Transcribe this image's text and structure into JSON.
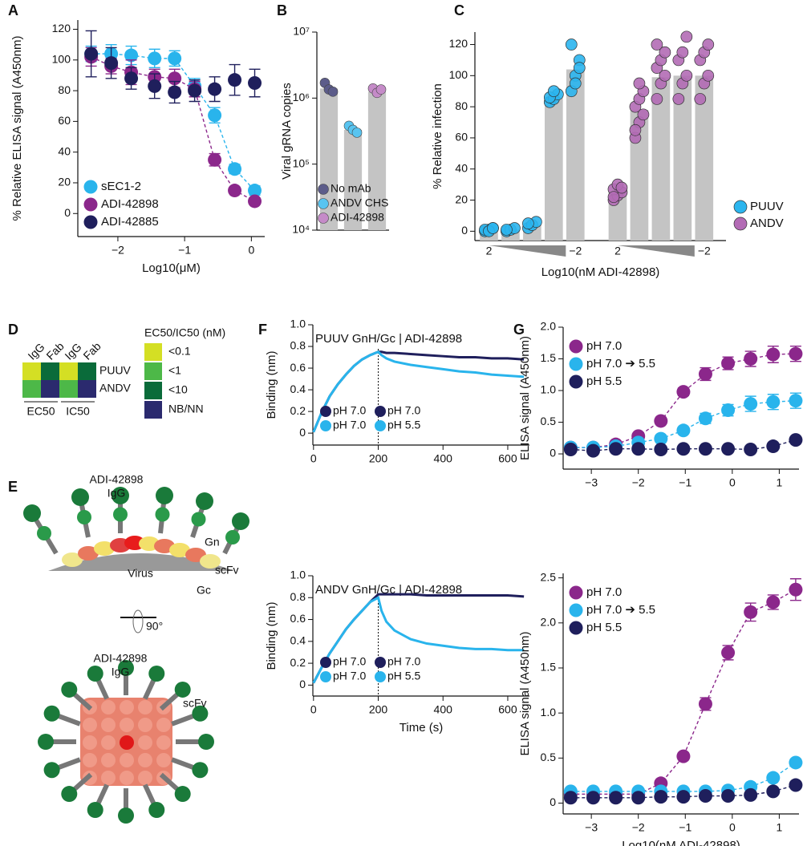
{
  "chart_data": [
    {
      "type": "scatter",
      "panel": "A",
      "xlabel": "Log10(μM)",
      "ylabel": "% Relative ELISA signal (A450nm)",
      "xlim": [
        -2.6,
        0.2
      ],
      "ylim": [
        -15,
        126
      ],
      "xticks": [
        {
          "value": -2,
          "label": "−2"
        },
        {
          "value": -1,
          "label": "−1"
        },
        0
      ],
      "yticks": [
        0,
        20,
        40,
        60,
        80,
        100,
        120
      ],
      "legend": "lower left",
      "x": [
        -2.4,
        -2.1,
        -1.8,
        -1.45,
        -1.15,
        -0.85,
        -0.55,
        -0.25,
        0.05
      ],
      "series": [
        {
          "name": "sEC1-2",
          "color": "#29b4ec",
          "connect": true,
          "values": [
            104,
            104,
            103,
            101,
            101,
            83,
            64,
            29,
            15
          ],
          "errors": [
            5,
            6,
            6,
            6,
            5,
            5,
            5,
            3,
            3
          ]
        },
        {
          "name": "ADI-42898",
          "color": "#8b278b",
          "connect": true,
          "values": [
            102,
            96,
            92,
            89,
            88,
            81,
            35,
            15,
            8
          ],
          "errors": [
            6,
            5,
            8,
            5,
            6,
            5,
            4,
            2,
            2
          ]
        },
        {
          "name": "ADI-42885",
          "color": "#1f1f5c",
          "connect": false,
          "values": [
            104,
            98,
            88,
            83,
            79,
            80,
            81,
            87,
            85
          ],
          "errors": [
            15,
            10,
            7,
            8,
            7,
            7,
            8,
            10,
            9
          ]
        }
      ]
    },
    {
      "type": "bar",
      "panel": "B",
      "ylabel": "Viral gRNA copies",
      "ylog": true,
      "ylim": [
        10000,
        10000000
      ],
      "yticks": [
        {
          "value": 10000,
          "label": "10⁴"
        },
        {
          "value": 100000,
          "label": "10⁵"
        },
        {
          "value": 1000000,
          "label": "10⁶"
        },
        {
          "value": 10000000,
          "label": "10⁷"
        }
      ],
      "legend": "lower left",
      "color": "#c4c4c4",
      "categories": [
        "No mAb",
        "ANDV CHS",
        "ADI-42898"
      ],
      "values": [
        1400000,
        330000,
        1250000
      ],
      "points": [
        [
          1700000,
          1350000,
          1250000
        ],
        [
          380000,
          330000,
          300000
        ],
        [
          1400000,
          1200000,
          1350000
        ]
      ],
      "point_colors": [
        "#5c5c8a",
        "#58c4f0",
        "#c58bc8"
      ]
    },
    {
      "type": "grouped-bar",
      "panel": "C",
      "ylabel": "% Relative infection",
      "xlabel": "Log10(nM ADI-42898)",
      "ylim": [
        -6,
        128
      ],
      "yticks": [
        0,
        20,
        40,
        60,
        80,
        100,
        120
      ],
      "xticks": [
        2,
        {
          "value": -2,
          "label": "−2"
        }
      ],
      "legend": "lower right",
      "color": "#c4c4c4",
      "groups": [
        {
          "name": "PUUV",
          "color": "#2bb5ee",
          "values": [
            1,
            1,
            4,
            86,
            104
          ],
          "points": [
            [
              0,
              1,
              2,
              1,
              0,
              2
            ],
            [
              0,
              1,
              2,
              1
            ],
            [
              2,
              4,
              6,
              5
            ],
            [
              83,
              85,
              88,
              86,
              90
            ],
            [
              90,
              100,
              110,
              120,
              95,
              105
            ]
          ]
        },
        {
          "name": "ANDV",
          "color": "#b36bb5",
          "values": [
            25,
            78,
            99,
            100,
            100
          ],
          "points": [
            [
              20,
              23,
              25,
              27,
              30,
              28,
              22
            ],
            [
              60,
              70,
              75,
              80,
              85,
              90,
              65,
              95
            ],
            [
              85,
              95,
              100,
              105,
              110,
              115,
              120
            ],
            [
              85,
              95,
              100,
              110,
              115,
              125
            ],
            [
              85,
              95,
              100,
              110,
              115,
              120
            ]
          ]
        }
      ]
    },
    {
      "type": "heatmap",
      "panel": "D",
      "columns": [
        "IgG",
        "Fab",
        "IgG",
        "Fab"
      ],
      "rows": [
        "PUUV",
        "ANDV"
      ],
      "column_groups": [
        "EC50",
        "IC50"
      ],
      "cells": [
        [
          0,
          2,
          0,
          2
        ],
        [
          1,
          3,
          1,
          3
        ]
      ],
      "legend_title": "EC50/IC50 (nM)",
      "levels": [
        {
          "label": "<0.1",
          "color": "#d4df24"
        },
        {
          "label": "<1",
          "color": "#4db848"
        },
        {
          "label": "<10",
          "color": "#0a6b3a"
        },
        {
          "label": "NB/NN",
          "color": "#2b2a6e"
        }
      ]
    },
    {
      "type": "line",
      "panel": "F",
      "title": "PUUV GnH/Gc | ADI-42898",
      "ylabel": "Binding (nm)",
      "xlim": [
        -2,
        667
      ],
      "ylim": [
        -0.11,
        1
      ],
      "xticks": [
        0,
        200,
        400,
        600
      ],
      "yticks": [
        0,
        0.2,
        0.4,
        0.6,
        0.8,
        {
          "value": 1,
          "label": "1.0"
        }
      ],
      "dissociation_start": 200,
      "legend": "lower left",
      "x": [
        0,
        25,
        50,
        75,
        100,
        125,
        150,
        175,
        200,
        210,
        225,
        250,
        300,
        350,
        400,
        450,
        500,
        550,
        600,
        650
      ],
      "series": [
        {
          "name": "pH 7.0",
          "name_dissociation": "pH 7.0",
          "color": "#1f1f5c",
          "values": [
            0.01,
            0.19,
            0.34,
            0.45,
            0.54,
            0.62,
            0.68,
            0.72,
            0.75,
            0.75,
            0.74,
            0.74,
            0.73,
            0.72,
            0.71,
            0.7,
            0.7,
            0.69,
            0.69,
            0.68
          ]
        },
        {
          "name": "pH 7.0",
          "name_dissociation": "pH 5.5",
          "color": "#29b4ec",
          "values": [
            0.01,
            0.19,
            0.34,
            0.45,
            0.54,
            0.62,
            0.68,
            0.72,
            0.75,
            0.72,
            0.69,
            0.66,
            0.63,
            0.61,
            0.59,
            0.57,
            0.56,
            0.54,
            0.53,
            0.52
          ]
        }
      ]
    },
    {
      "type": "line",
      "title": "ANDV GnH/Gc | ADI-42898",
      "ylabel": "Binding (nm)",
      "xlabel": "Time (s)",
      "xlim": [
        -2,
        667
      ],
      "ylim": [
        -0.1,
        1
      ],
      "xticks": [
        0,
        200,
        400,
        600
      ],
      "yticks": [
        0,
        0.2,
        0.4,
        0.6,
        0.8,
        {
          "value": 1,
          "label": "1.0"
        }
      ],
      "dissociation_start": 200,
      "legend": "lower left",
      "x": [
        0,
        25,
        50,
        75,
        100,
        125,
        150,
        175,
        200,
        210,
        225,
        250,
        300,
        350,
        400,
        450,
        500,
        550,
        600,
        650
      ],
      "series": [
        {
          "name": "pH 7.0",
          "name_dissociation": "pH 7.0",
          "color": "#1f1f5c",
          "values": [
            0.02,
            0.16,
            0.29,
            0.4,
            0.51,
            0.6,
            0.68,
            0.76,
            0.83,
            0.83,
            0.83,
            0.83,
            0.83,
            0.82,
            0.82,
            0.82,
            0.82,
            0.82,
            0.82,
            0.81
          ]
        },
        {
          "name": "pH 7.0",
          "name_dissociation": "pH 5.5",
          "color": "#29b4ec",
          "values": [
            0.02,
            0.16,
            0.29,
            0.4,
            0.51,
            0.6,
            0.68,
            0.76,
            0.8,
            0.68,
            0.58,
            0.5,
            0.42,
            0.38,
            0.36,
            0.34,
            0.33,
            0.33,
            0.32,
            0.32
          ]
        }
      ]
    },
    {
      "type": "scatter",
      "panel": "G",
      "ylabel": "ELISA signal (A450nm)",
      "xlim": [
        -3.6,
        1.42
      ],
      "ylim": [
        -0.24,
        2.0
      ],
      "legend": "upper left",
      "xticks": [
        {
          "value": -3,
          "label": "−3"
        },
        {
          "value": -2,
          "label": "−2"
        },
        {
          "value": -1,
          "label": "−1"
        },
        0,
        1
      ],
      "yticks": [
        0,
        0.5,
        {
          "value": 1,
          "label": "1.0"
        },
        1.5,
        {
          "value": 2,
          "label": "2.0"
        }
      ],
      "x": [
        -3.44,
        -2.96,
        -2.48,
        -2.0,
        -1.52,
        -1.04,
        -0.57,
        -0.09,
        0.39,
        0.87,
        1.35
      ],
      "series": [
        {
          "name": "pH 7.0",
          "color": "#8b278b",
          "connect": true,
          "values": [
            0.1,
            0.1,
            0.15,
            0.28,
            0.52,
            0.98,
            1.26,
            1.43,
            1.5,
            1.57,
            1.58
          ],
          "errors": [
            0.02,
            0.02,
            0.02,
            0.03,
            0.04,
            0.06,
            0.1,
            0.1,
            0.12,
            0.13,
            0.12
          ]
        },
        {
          "name": "pH 7.0 ➔ 5.5",
          "color": "#29b4ec",
          "connect": true,
          "values": [
            0.1,
            0.1,
            0.12,
            0.18,
            0.24,
            0.37,
            0.56,
            0.69,
            0.79,
            0.82,
            0.84
          ],
          "errors": [
            0.02,
            0.02,
            0.02,
            0.02,
            0.03,
            0.05,
            0.08,
            0.09,
            0.12,
            0.12,
            0.12
          ]
        },
        {
          "name": "pH 5.5",
          "color": "#1f1f5c",
          "connect": true,
          "values": [
            0.07,
            0.05,
            0.08,
            0.08,
            0.07,
            0.08,
            0.08,
            0.08,
            0.07,
            0.12,
            0.22
          ],
          "errors": [
            0.01,
            0.01,
            0.01,
            0.01,
            0.01,
            0.01,
            0.01,
            0.01,
            0.01,
            0.02,
            0.02
          ]
        }
      ]
    },
    {
      "type": "scatter",
      "ylabel": "ELISA signal (A450nm)",
      "xlabel": "Log10(nM ADI-42898)",
      "xlim": [
        -3.6,
        1.42
      ],
      "ylim": [
        -0.12,
        2.55
      ],
      "legend": "upper left",
      "xticks": [
        {
          "value": -3,
          "label": "−3"
        },
        {
          "value": -2,
          "label": "−2"
        },
        {
          "value": -1,
          "label": "−1"
        },
        0,
        1
      ],
      "yticks": [
        0,
        0.5,
        {
          "value": 1,
          "label": "1.0"
        },
        1.5,
        {
          "value": 2,
          "label": "2.0"
        },
        2.5
      ],
      "x": [
        -3.44,
        -2.96,
        -2.48,
        -2.0,
        -1.52,
        -1.04,
        -0.57,
        -0.09,
        0.39,
        0.87,
        1.35
      ],
      "series": [
        {
          "name": "pH 7.0",
          "color": "#8b278b",
          "connect": true,
          "values": [
            0.1,
            0.1,
            0.1,
            0.1,
            0.22,
            0.52,
            1.1,
            1.67,
            2.12,
            2.23,
            2.37
          ],
          "errors": [
            0.02,
            0.02,
            0.02,
            0.02,
            0.03,
            0.04,
            0.07,
            0.08,
            0.1,
            0.08,
            0.12
          ]
        },
        {
          "name": "pH 7.0 ➔ 5.5",
          "color": "#29b4ec",
          "connect": true,
          "values": [
            0.13,
            0.13,
            0.13,
            0.13,
            0.13,
            0.13,
            0.13,
            0.14,
            0.18,
            0.28,
            0.45
          ],
          "errors": [
            0.02,
            0.02,
            0.02,
            0.02,
            0.02,
            0.02,
            0.02,
            0.02,
            0.02,
            0.03,
            0.04
          ]
        },
        {
          "name": "pH 5.5",
          "color": "#1f1f5c",
          "connect": true,
          "values": [
            0.06,
            0.06,
            0.06,
            0.06,
            0.07,
            0.07,
            0.08,
            0.08,
            0.09,
            0.13,
            0.2
          ],
          "errors": [
            0.01,
            0.01,
            0.01,
            0.01,
            0.01,
            0.01,
            0.01,
            0.01,
            0.01,
            0.02,
            0.02
          ]
        }
      ]
    }
  ],
  "panel_e": {
    "panel": "E",
    "antibody": [
      "ADI-42898",
      "IgG"
    ],
    "gn": "Gn",
    "virus": "Virus",
    "scfv": "scFv",
    "gc": "Gc",
    "rotation": "90°"
  }
}
